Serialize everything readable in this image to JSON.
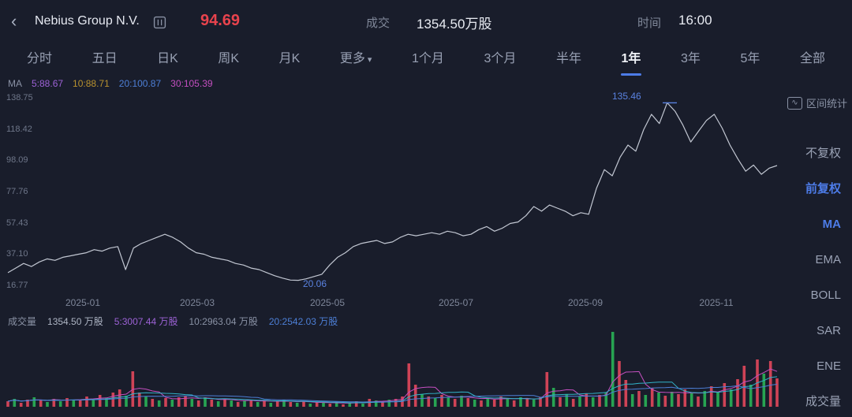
{
  "icons": {
    "back": "‹",
    "caret_down": "▾",
    "wave": "∿"
  },
  "colors": {
    "accent_blue": "#4d7ce8",
    "price_red": "#e8434d",
    "price_line": "#c2c7d2",
    "annotation_blue": "#5a82e0",
    "vol_up": "#cf4356",
    "vol_down": "#27a452",
    "ma5": "#c44fc0",
    "ma10_cyan": "#31b3c9",
    "ma20": "#4d7fd6"
  },
  "header": {
    "title": "Nebius Group N.V.",
    "price": "94.69",
    "volume_label": "成交",
    "volume_value": "1354.50万股",
    "time_label": "时间",
    "time_value": "16:00"
  },
  "tabs": {
    "items": [
      {
        "label": "分时",
        "active": false
      },
      {
        "label": "五日",
        "active": false
      },
      {
        "label": "日K",
        "active": false
      },
      {
        "label": "周K",
        "active": false
      },
      {
        "label": "月K",
        "active": false
      },
      {
        "label": "更多",
        "active": false,
        "dropdown": true
      },
      {
        "label": "1个月",
        "active": false
      },
      {
        "label": "3个月",
        "active": false
      },
      {
        "label": "半年",
        "active": false
      },
      {
        "label": "1年",
        "active": true
      },
      {
        "label": "3年",
        "active": false
      },
      {
        "label": "5年",
        "active": false
      },
      {
        "label": "全部",
        "active": false
      }
    ]
  },
  "ma_legend": {
    "label": "MA",
    "items": [
      {
        "text": "5:88.67",
        "color": "#9d62d6"
      },
      {
        "text": "10:88.71",
        "color": "#b8922f"
      },
      {
        "text": "20:100.87",
        "color": "#4d7fd6"
      },
      {
        "text": "30:105.39",
        "color": "#c44fc0"
      }
    ]
  },
  "volume_legend": {
    "label": "成交量",
    "value": "1354.50 万股",
    "items": [
      {
        "text": "5:3007.44 万股",
        "color": "#9d62d6"
      },
      {
        "text": "10:2963.04 万股",
        "color": "#8a92a5"
      },
      {
        "text": "20:2542.03 万股",
        "color": "#4d7fd6"
      }
    ]
  },
  "sidebar": {
    "tool": {
      "label": "区间统计"
    },
    "items": [
      {
        "label": "不复权",
        "active": false
      },
      {
        "label": "前复权",
        "active": true
      },
      {
        "label": "MA",
        "active": true
      },
      {
        "label": "EMA",
        "active": false
      },
      {
        "label": "BOLL",
        "active": false
      },
      {
        "label": "SAR",
        "active": false
      },
      {
        "label": "ENE",
        "active": false
      },
      {
        "label": "成交量",
        "active": false
      }
    ]
  },
  "chart_data": {
    "type": "line",
    "title": "Nebius Group N.V. 1年 股价走势",
    "y_axis": {
      "min": 16.77,
      "max": 138.75,
      "labels": [
        "138.75",
        "118.42",
        "98.09",
        "77.76",
        "57.43",
        "37.10",
        "16.77"
      ]
    },
    "x_labels": [
      "2025-01",
      "2025-03",
      "2025-05",
      "2025-07",
      "2025-09",
      "2025-11"
    ],
    "high_annotation": {
      "text": "135.46",
      "value": 135.46
    },
    "low_annotation": {
      "text": "20.06",
      "value": 20.06
    },
    "last_price": 94.69,
    "price_series": [
      25,
      28,
      31,
      29,
      32,
      34,
      33,
      35,
      36,
      37,
      38,
      40,
      39,
      41,
      42,
      27,
      41,
      44,
      46,
      48,
      50,
      48,
      45,
      41,
      38,
      37,
      35,
      34,
      33,
      31,
      30,
      28,
      27,
      25,
      23,
      21.5,
      20.2,
      20.06,
      21,
      22.5,
      24,
      30,
      35,
      38,
      42,
      44,
      45,
      46,
      44,
      45,
      48,
      50,
      49,
      50,
      51,
      50,
      52,
      51,
      49,
      50,
      53,
      55,
      52,
      54,
      57,
      58,
      62,
      68,
      65,
      69,
      67,
      65,
      62,
      64,
      63,
      80,
      92,
      88,
      100,
      108,
      104,
      118,
      128,
      122,
      135.46,
      130,
      121,
      110,
      117,
      124,
      128,
      119,
      108,
      99,
      91,
      95,
      89,
      93,
      94.69
    ],
    "volume": {
      "type": "bar",
      "bars": [
        [
          7,
          "r"
        ],
        [
          10,
          "g"
        ],
        [
          5,
          "r"
        ],
        [
          9,
          "r"
        ],
        [
          12,
          "g"
        ],
        [
          8,
          "r"
        ],
        [
          6,
          "g"
        ],
        [
          10,
          "r"
        ],
        [
          7,
          "g"
        ],
        [
          11,
          "r"
        ],
        [
          9,
          "g"
        ],
        [
          8,
          "r"
        ],
        [
          13,
          "r"
        ],
        [
          9,
          "g"
        ],
        [
          15,
          "r"
        ],
        [
          11,
          "g"
        ],
        [
          18,
          "r"
        ],
        [
          22,
          "r"
        ],
        [
          14,
          "g"
        ],
        [
          45,
          "r"
        ],
        [
          18,
          "r"
        ],
        [
          13,
          "g"
        ],
        [
          10,
          "r"
        ],
        [
          8,
          "g"
        ],
        [
          11,
          "r"
        ],
        [
          9,
          "g"
        ],
        [
          12,
          "r"
        ],
        [
          14,
          "r"
        ],
        [
          10,
          "g"
        ],
        [
          8,
          "r"
        ],
        [
          12,
          "g"
        ],
        [
          9,
          "r"
        ],
        [
          7,
          "g"
        ],
        [
          10,
          "r"
        ],
        [
          8,
          "g"
        ],
        [
          6,
          "r"
        ],
        [
          8,
          "g"
        ],
        [
          9,
          "r"
        ],
        [
          6,
          "g"
        ],
        [
          8,
          "r"
        ],
        [
          5,
          "g"
        ],
        [
          7,
          "r"
        ],
        [
          9,
          "g"
        ],
        [
          6,
          "r"
        ],
        [
          5,
          "g"
        ],
        [
          7,
          "r"
        ],
        [
          4,
          "g"
        ],
        [
          6,
          "r"
        ],
        [
          5,
          "g"
        ],
        [
          4,
          "r"
        ],
        [
          6,
          "g"
        ],
        [
          3,
          "r"
        ],
        [
          5,
          "g"
        ],
        [
          7,
          "r"
        ],
        [
          4,
          "g"
        ],
        [
          10,
          "r"
        ],
        [
          8,
          "g"
        ],
        [
          6,
          "r"
        ],
        [
          9,
          "g"
        ],
        [
          10,
          "r"
        ],
        [
          13,
          "r"
        ],
        [
          55,
          "r"
        ],
        [
          28,
          "r"
        ],
        [
          16,
          "g"
        ],
        [
          13,
          "r"
        ],
        [
          11,
          "g"
        ],
        [
          15,
          "r"
        ],
        [
          12,
          "g"
        ],
        [
          10,
          "r"
        ],
        [
          14,
          "g"
        ],
        [
          11,
          "r"
        ],
        [
          9,
          "g"
        ],
        [
          8,
          "r"
        ],
        [
          11,
          "g"
        ],
        [
          9,
          "r"
        ],
        [
          13,
          "r"
        ],
        [
          10,
          "g"
        ],
        [
          8,
          "r"
        ],
        [
          12,
          "g"
        ],
        [
          10,
          "r"
        ],
        [
          9,
          "g"
        ],
        [
          12,
          "r"
        ],
        [
          44,
          "r"
        ],
        [
          24,
          "g"
        ],
        [
          12,
          "r"
        ],
        [
          16,
          "g"
        ],
        [
          10,
          "r"
        ],
        [
          13,
          "g"
        ],
        [
          17,
          "r"
        ],
        [
          12,
          "g"
        ],
        [
          15,
          "r"
        ],
        [
          18,
          "g"
        ],
        [
          95,
          "g"
        ],
        [
          58,
          "r"
        ],
        [
          34,
          "r"
        ],
        [
          16,
          "g"
        ],
        [
          20,
          "r"
        ],
        [
          15,
          "g"
        ],
        [
          24,
          "r"
        ],
        [
          18,
          "g"
        ],
        [
          14,
          "r"
        ],
        [
          19,
          "g"
        ],
        [
          16,
          "r"
        ],
        [
          22,
          "r"
        ],
        [
          17,
          "g"
        ],
        [
          13,
          "r"
        ],
        [
          20,
          "g"
        ],
        [
          26,
          "r"
        ],
        [
          18,
          "g"
        ],
        [
          30,
          "r"
        ],
        [
          22,
          "g"
        ],
        [
          35,
          "r"
        ],
        [
          52,
          "r"
        ],
        [
          28,
          "g"
        ],
        [
          60,
          "r"
        ],
        [
          42,
          "g"
        ],
        [
          58,
          "r"
        ],
        [
          36,
          "r"
        ]
      ]
    }
  }
}
